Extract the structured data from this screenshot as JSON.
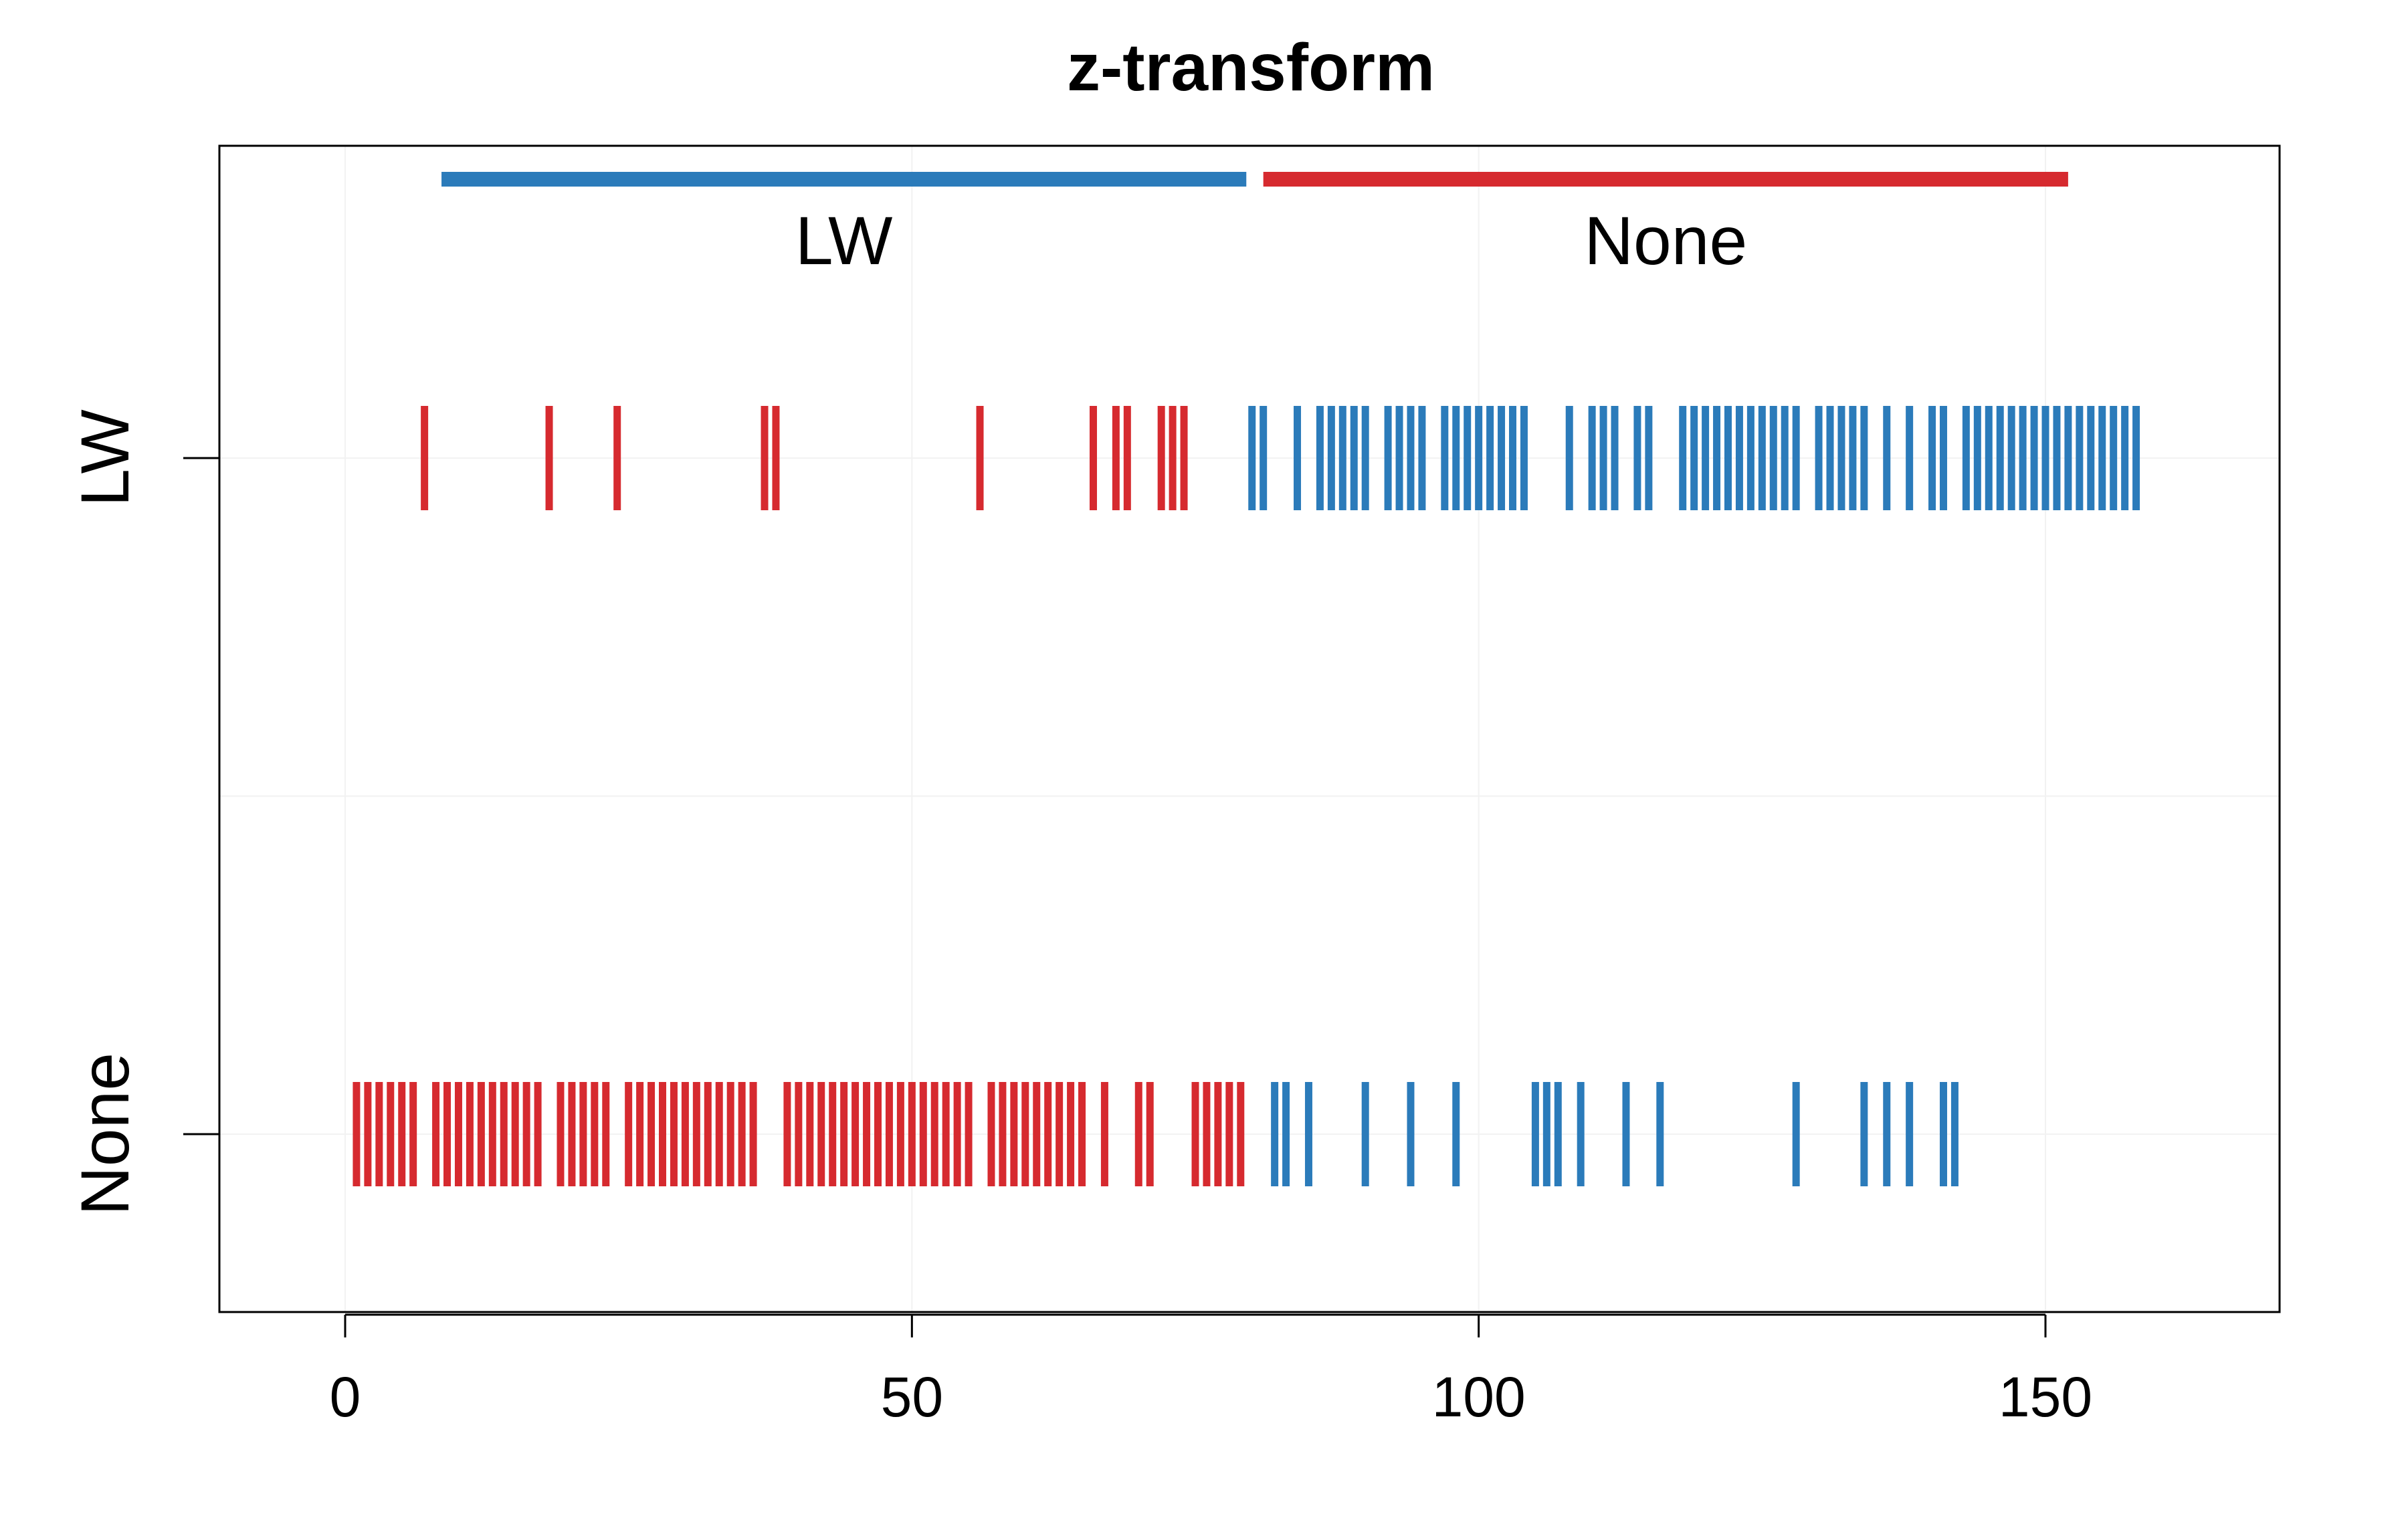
{
  "chart_data": {
    "type": "barcode",
    "title": "z-transform",
    "xlabel": "",
    "ylabel": "",
    "xlim": [
      -22,
      170
    ],
    "xticks": [
      0,
      50,
      100,
      150
    ],
    "grid": true,
    "rows": [
      "LW",
      "None"
    ],
    "group_bars": [
      {
        "label": "LW",
        "start": 8.5,
        "end": 79.5,
        "color": "#2b7bba"
      },
      {
        "label": "None",
        "start": 81,
        "end": 152,
        "color": "#d62a2f"
      }
    ],
    "colors": {
      "red": "#d62a2f",
      "blue": "#2b7bba"
    },
    "series": [
      {
        "row": "LW",
        "color_key": "red",
        "x": [
          7,
          18,
          24,
          37,
          38,
          56,
          66,
          68,
          69,
          72,
          73,
          74
        ]
      },
      {
        "row": "LW",
        "color_key": "blue",
        "x": [
          80,
          81,
          84,
          86,
          87,
          88,
          89,
          90,
          92,
          93,
          94,
          95,
          97,
          98,
          99,
          100,
          101,
          102,
          103,
          104,
          108,
          110,
          111,
          112,
          114,
          115,
          118,
          119,
          120,
          121,
          122,
          123,
          124,
          125,
          126,
          127,
          128,
          130,
          131,
          132,
          133,
          134,
          136,
          138,
          140,
          141,
          143,
          144,
          145,
          146,
          147,
          148,
          149,
          150,
          151,
          152,
          153,
          154,
          155,
          156,
          157,
          158
        ]
      },
      {
        "row": "None",
        "color_key": "red",
        "x": [
          1,
          2,
          3,
          4,
          5,
          6,
          8,
          9,
          10,
          11,
          12,
          13,
          14,
          15,
          16,
          17,
          19,
          20,
          21,
          22,
          23,
          25,
          26,
          27,
          28,
          29,
          30,
          31,
          32,
          33,
          34,
          35,
          36,
          39,
          40,
          41,
          42,
          43,
          44,
          45,
          46,
          47,
          48,
          49,
          50,
          51,
          52,
          53,
          54,
          55,
          57,
          58,
          59,
          60,
          61,
          62,
          63,
          64,
          65,
          67,
          70,
          71,
          75,
          76,
          77,
          78,
          79
        ]
      },
      {
        "row": "None",
        "color_key": "blue",
        "x": [
          82,
          83,
          85,
          90,
          94,
          98,
          105,
          106,
          107,
          109,
          113,
          116,
          128,
          134,
          136,
          138,
          141,
          142
        ]
      }
    ]
  }
}
